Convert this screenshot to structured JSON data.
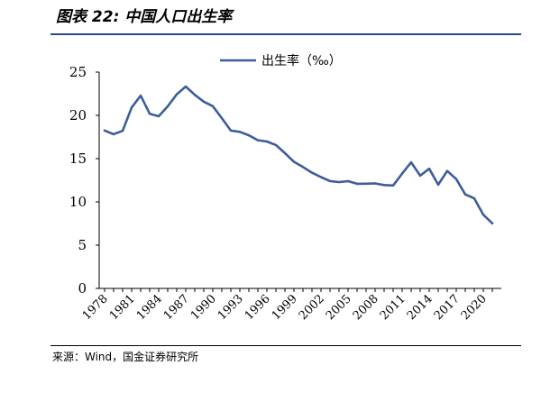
{
  "figure": {
    "title": "图表 22:  中国人口出生率",
    "source": "来源：Wind，国金证券研究所"
  },
  "colors": {
    "line": "#3d5d9b",
    "title_rule": "#2a4a8a"
  },
  "chart_data": {
    "type": "line",
    "title": "",
    "xlabel": "",
    "ylabel": "",
    "ylim": [
      0,
      25
    ],
    "yticks": [
      "0",
      "5",
      "10",
      "15",
      "20",
      "25"
    ],
    "xtick_labels": [
      "1978",
      "1981",
      "1984",
      "1987",
      "1990",
      "1993",
      "1996",
      "1999",
      "2002",
      "2005",
      "2008",
      "2011",
      "2014",
      "2017",
      "2020"
    ],
    "grid": false,
    "legend_position": "top-center",
    "x": [
      1978,
      1979,
      1980,
      1981,
      1982,
      1983,
      1984,
      1985,
      1986,
      1987,
      1988,
      1989,
      1990,
      1991,
      1992,
      1993,
      1994,
      1995,
      1996,
      1997,
      1998,
      1999,
      2000,
      2001,
      2002,
      2003,
      2004,
      2005,
      2006,
      2007,
      2008,
      2009,
      2010,
      2011,
      2012,
      2013,
      2014,
      2015,
      2016,
      2017,
      2018,
      2019,
      2020,
      2021
    ],
    "series": [
      {
        "name": "出生率（‰）",
        "values": [
          18.25,
          17.82,
          18.21,
          20.91,
          22.28,
          20.19,
          19.9,
          21.04,
          22.43,
          23.33,
          22.37,
          21.58,
          21.06,
          19.68,
          18.24,
          18.09,
          17.7,
          17.12,
          16.98,
          16.57,
          15.64,
          14.64,
          14.03,
          13.38,
          12.86,
          12.41,
          12.29,
          12.4,
          12.09,
          12.1,
          12.14,
          11.95,
          11.9,
          13.27,
          14.57,
          13.03,
          13.83,
          11.99,
          13.57,
          12.64,
          10.86,
          10.41,
          8.52,
          7.52
        ]
      }
    ]
  }
}
